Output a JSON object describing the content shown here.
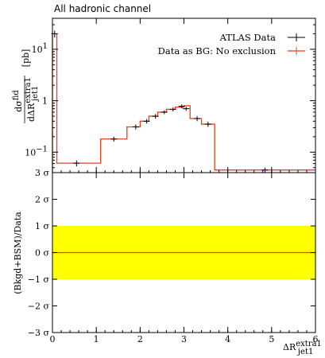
{
  "chart_data": {
    "type": "line",
    "title": "All hadronic channel",
    "xlabel": "ΔR^{extra1}_{jet1}",
    "xlabel_main": "ΔR",
    "xlabel_sup": "extra1",
    "xlabel_sub": "jet1",
    "ylabel": "dσ^{fid}/dΔR^{extra1}_{jet1} [pb]",
    "ylabel_num_main": "dσ",
    "ylabel_num_sup": "fid",
    "ylabel_den_main": "dΔR",
    "ylabel_den_sup": "extra1",
    "ylabel_den_sub": "jet1",
    "ylabel_unit": "[pb]",
    "xlim": [
      0,
      6
    ],
    "ylim": [
      0.04,
      40
    ],
    "yscale": "log",
    "x_ticks": [
      "0",
      "1",
      "2",
      "3",
      "4",
      "5",
      "6"
    ],
    "y_ticks": [
      {
        "value": 0.1,
        "base": "10",
        "exp": "−1"
      },
      {
        "value": 1,
        "label": "1"
      },
      {
        "value": 10,
        "base": "10",
        "exp": "1"
      }
    ],
    "legend_position": "top-right",
    "series": [
      {
        "name": "ATLAS Data",
        "kind": "points",
        "color": "#000000",
        "points": [
          {
            "x": 0.05,
            "y": 20.0,
            "yerr": 3.0
          },
          {
            "x": 0.55,
            "y": 0.061,
            "yerr": 0.008
          },
          {
            "x": 1.4,
            "y": 0.18,
            "yerr": 0.02
          },
          {
            "x": 1.9,
            "y": 0.31,
            "yerr": 0.035
          },
          {
            "x": 2.15,
            "y": 0.4,
            "yerr": 0.04
          },
          {
            "x": 2.35,
            "y": 0.5,
            "yerr": 0.05
          },
          {
            "x": 2.55,
            "y": 0.6,
            "yerr": 0.05
          },
          {
            "x": 2.75,
            "y": 0.68,
            "yerr": 0.06
          },
          {
            "x": 2.95,
            "y": 0.78,
            "yerr": 0.07
          },
          {
            "x": 3.05,
            "y": 0.7,
            "yerr": 0.06
          },
          {
            "x": 3.3,
            "y": 0.45,
            "yerr": 0.05
          },
          {
            "x": 3.55,
            "y": 0.35,
            "yerr": 0.04
          },
          {
            "x": 4.85,
            "y": 0.045,
            "yerr": 0.005
          }
        ]
      },
      {
        "name": "Data as BG: No exclusion",
        "kind": "step",
        "color": "#e8401c",
        "bins": [
          {
            "x0": 0.0,
            "x1": 0.1,
            "y": 20.0
          },
          {
            "x0": 0.1,
            "x1": 1.1,
            "y": 0.061
          },
          {
            "x0": 1.1,
            "x1": 1.7,
            "y": 0.18
          },
          {
            "x0": 1.7,
            "x1": 2.0,
            "y": 0.31
          },
          {
            "x0": 2.0,
            "x1": 2.2,
            "y": 0.4
          },
          {
            "x0": 2.2,
            "x1": 2.4,
            "y": 0.5
          },
          {
            "x0": 2.4,
            "x1": 2.6,
            "y": 0.6
          },
          {
            "x0": 2.6,
            "x1": 2.8,
            "y": 0.68
          },
          {
            "x0": 2.8,
            "x1": 3.0,
            "y": 0.75
          },
          {
            "x0": 3.0,
            "x1": 3.14,
            "y": 0.8
          },
          {
            "x0": 3.14,
            "x1": 3.4,
            "y": 0.45
          },
          {
            "x0": 3.4,
            "x1": 3.7,
            "y": 0.35
          },
          {
            "x0": 3.7,
            "x1": 6.0,
            "y": 0.045
          }
        ]
      }
    ],
    "ratio_panel": {
      "ylabel": "(Bkgd+BSM)/Data",
      "ylim": [
        -3,
        3
      ],
      "y_ticks": [
        {
          "value": 3,
          "label": "3 σ"
        },
        {
          "value": 2,
          "label": "2 σ"
        },
        {
          "value": 1,
          "label": "1 σ"
        },
        {
          "value": 0,
          "label": "0 σ"
        },
        {
          "value": -1,
          "label": "−1 σ"
        },
        {
          "value": -2,
          "label": "−2 σ"
        },
        {
          "value": -3,
          "label": "−3 σ"
        }
      ],
      "band": {
        "y0": -1,
        "y1": 1,
        "color": "#ffff00"
      },
      "line": {
        "y": 0,
        "color": "#e8401c"
      }
    }
  }
}
